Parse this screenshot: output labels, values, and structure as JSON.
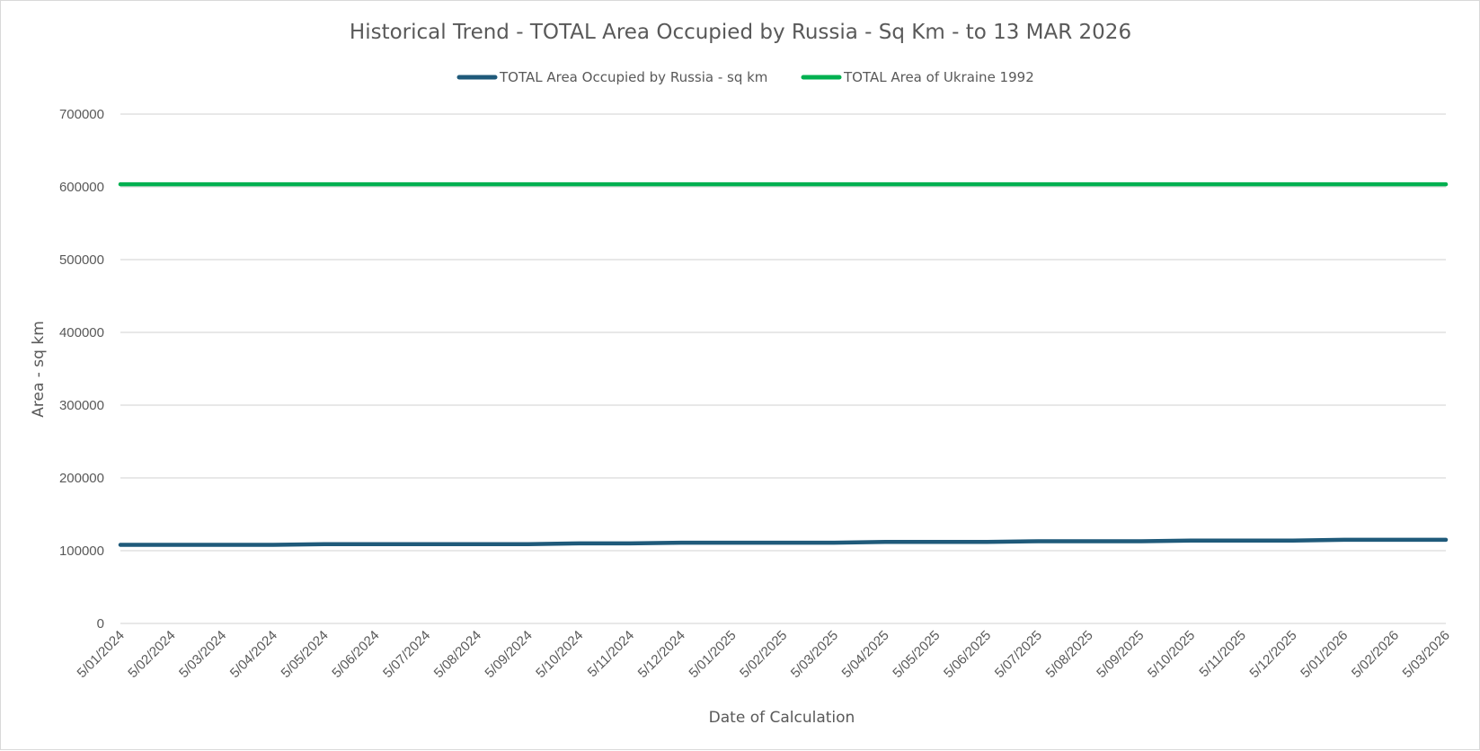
{
  "chart_data": {
    "type": "line",
    "title": "Historical Trend - TOTAL Area Occupied by Russia - Sq Km - to 13 MAR 2026",
    "xlabel": "Date of Calculation",
    "ylabel": "Area - sq km",
    "ylim": [
      0,
      700000
    ],
    "yticks": [
      "0",
      "100000",
      "200000",
      "300000",
      "400000",
      "500000",
      "600000",
      "700000"
    ],
    "grid": true,
    "legend_position": "top",
    "categories": [
      "5/01/2024",
      "5/02/2024",
      "5/03/2024",
      "5/04/2024",
      "5/05/2024",
      "5/06/2024",
      "5/07/2024",
      "5/08/2024",
      "5/09/2024",
      "5/10/2024",
      "5/11/2024",
      "5/12/2024",
      "5/01/2025",
      "5/02/2025",
      "5/03/2025",
      "5/04/2025",
      "5/05/2025",
      "5/06/2025",
      "5/07/2025",
      "5/08/2025",
      "5/09/2025",
      "5/10/2025",
      "5/11/2025",
      "5/12/2025",
      "5/01/2026",
      "5/02/2026",
      "5/03/2026"
    ],
    "series": [
      {
        "name": "TOTAL Area Occupied by Russia - sq km",
        "color": "#1f5a7a",
        "values": [
          108000,
          108000,
          108000,
          108000,
          109000,
          109000,
          109000,
          109000,
          109000,
          110000,
          110000,
          111000,
          111000,
          111000,
          111000,
          112000,
          112000,
          112000,
          113000,
          113000,
          113000,
          114000,
          114000,
          114000,
          115000,
          115000,
          115000
        ]
      },
      {
        "name": "TOTAL Area of Ukraine 1992",
        "color": "#00b050",
        "values": [
          603628,
          603628,
          603628,
          603628,
          603628,
          603628,
          603628,
          603628,
          603628,
          603628,
          603628,
          603628,
          603628,
          603628,
          603628,
          603628,
          603628,
          603628,
          603628,
          603628,
          603628,
          603628,
          603628,
          603628,
          603628,
          603628,
          603628
        ]
      }
    ]
  }
}
